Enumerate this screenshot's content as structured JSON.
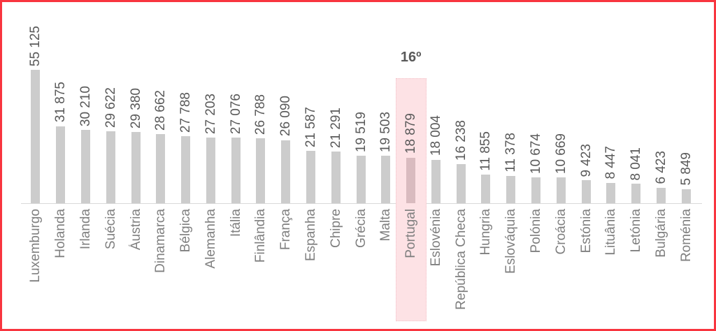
{
  "chart_data": {
    "type": "bar",
    "title": "",
    "xlabel": "",
    "ylabel": "",
    "bar_orientation": "vertical",
    "value_label_rotation": 90,
    "category_label_rotation": 90,
    "grid": false,
    "legend": false,
    "ylim": [
      0,
      55125
    ],
    "categories": [
      "Luxemburgo",
      "Holanda",
      "Irlanda",
      "Suécia",
      "Áustria",
      "Dinamarca",
      "Bélgica",
      "Alemanha",
      "Itália",
      "Finlândia",
      "França",
      "Espanha",
      "Chipre",
      "Grécia",
      "Malta",
      "Portugal",
      "Eslovénia",
      "República Checa",
      "Hungria",
      "Eslováquia",
      "Polónia",
      "Croácia",
      "Estónia",
      "Lituânia",
      "Letónia",
      "Bulgária",
      "Roménia"
    ],
    "values": [
      55125,
      31875,
      30210,
      29622,
      29380,
      28662,
      27788,
      27203,
      27076,
      26788,
      26090,
      21587,
      21291,
      19519,
      19503,
      18879,
      18004,
      16238,
      11855,
      11378,
      10674,
      10669,
      9423,
      8447,
      8041,
      6423,
      5849
    ],
    "value_labels": [
      "55 125",
      "31 875",
      "30 210",
      "29 622",
      "29 380",
      "28 662",
      "27 788",
      "27 203",
      "27 076",
      "26 788",
      "26 090",
      "21 587",
      "21 291",
      "19 519",
      "19 503",
      "18 879",
      "18 004",
      "16 238",
      "11 855",
      "11 378",
      "10 674",
      "10 669",
      "9 423",
      "8 447",
      "8 041",
      "6 423",
      "5 849"
    ],
    "highlight": {
      "index": 15,
      "category": "Portugal",
      "rank_label": "16º"
    },
    "colors": {
      "bar": "#cccccc",
      "highlight_bar": "#d9bbbf",
      "highlight_band": "#fde2e5",
      "value_text": "#595959",
      "category_text": "#7f7f7f",
      "rank_text": "#595959",
      "frame_border": "#f8353f",
      "axis_line": "#d9d9d9"
    }
  }
}
